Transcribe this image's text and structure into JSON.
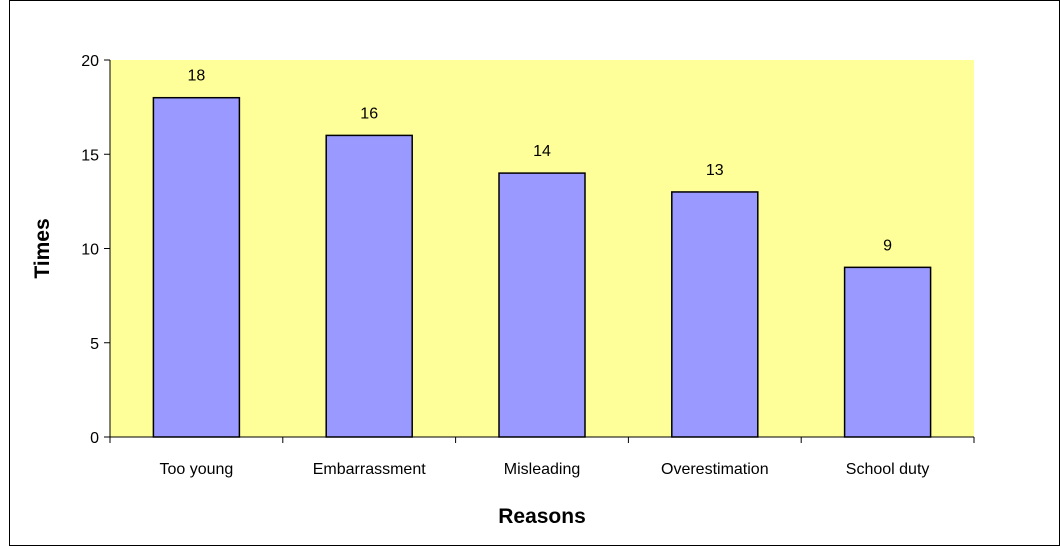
{
  "chart_data": {
    "type": "bar",
    "title": "",
    "xlabel": "Reasons",
    "ylabel": "Times",
    "categories": [
      "Too young",
      "Embarrassment",
      "Misleading",
      "Overestimation",
      "School duty"
    ],
    "values": [
      18,
      16,
      14,
      13,
      9
    ],
    "data_labels": [
      "18",
      "16",
      "14",
      "13",
      "9"
    ],
    "ylim": [
      0,
      20
    ],
    "yticks": [
      0,
      5,
      10,
      15,
      20
    ],
    "ytick_labels": [
      "0",
      "5",
      "10",
      "15",
      "20"
    ],
    "grid": false,
    "legend": "none",
    "colors": {
      "plot_background": "#ffff99",
      "bar_fill": "#9999ff",
      "bar_stroke": "#000000"
    }
  }
}
